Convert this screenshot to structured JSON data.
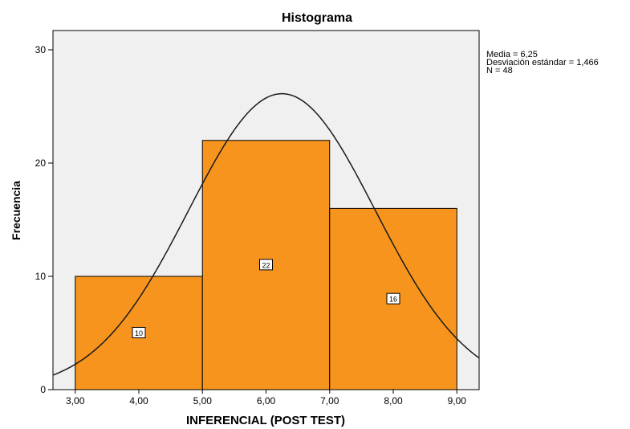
{
  "chart_data": {
    "type": "bar",
    "title": "Histograma",
    "xlabel": "INFERENCIAL (POST TEST)",
    "ylabel": "Frecuencia",
    "bins": [
      {
        "start": 3,
        "end": 5,
        "value": 10,
        "label": "10"
      },
      {
        "start": 5,
        "end": 7,
        "value": 22,
        "label": "22"
      },
      {
        "start": 7,
        "end": 9,
        "value": 16,
        "label": "16"
      }
    ],
    "x_ticks": [
      {
        "value": 3,
        "label": "3,00"
      },
      {
        "value": 4,
        "label": "4,00"
      },
      {
        "value": 5,
        "label": "5,00"
      },
      {
        "value": 6,
        "label": "6,00"
      },
      {
        "value": 7,
        "label": "7,00"
      },
      {
        "value": 8,
        "label": "8,00"
      },
      {
        "value": 9,
        "label": "9,00"
      }
    ],
    "y_ticks": [
      {
        "value": 0,
        "label": "0"
      },
      {
        "value": 10,
        "label": "10"
      },
      {
        "value": 20,
        "label": "20"
      },
      {
        "value": 30,
        "label": "30"
      }
    ],
    "xlim": [
      2.65,
      9.35
    ],
    "ylim": [
      0,
      31.7
    ],
    "normal_curve": {
      "mean": 6.25,
      "sd": 1.466,
      "n": 48,
      "bin_width": 2
    },
    "stats_lines": [
      "Media = 6,25",
      "Desviación estándar = 1,466",
      "N = 48"
    ],
    "colors": {
      "bar": "#F7941D",
      "plot_bg": "#F0F0F0",
      "curve": "#1a1a1a",
      "border": "#000000"
    },
    "grid": false,
    "legend": "none"
  }
}
